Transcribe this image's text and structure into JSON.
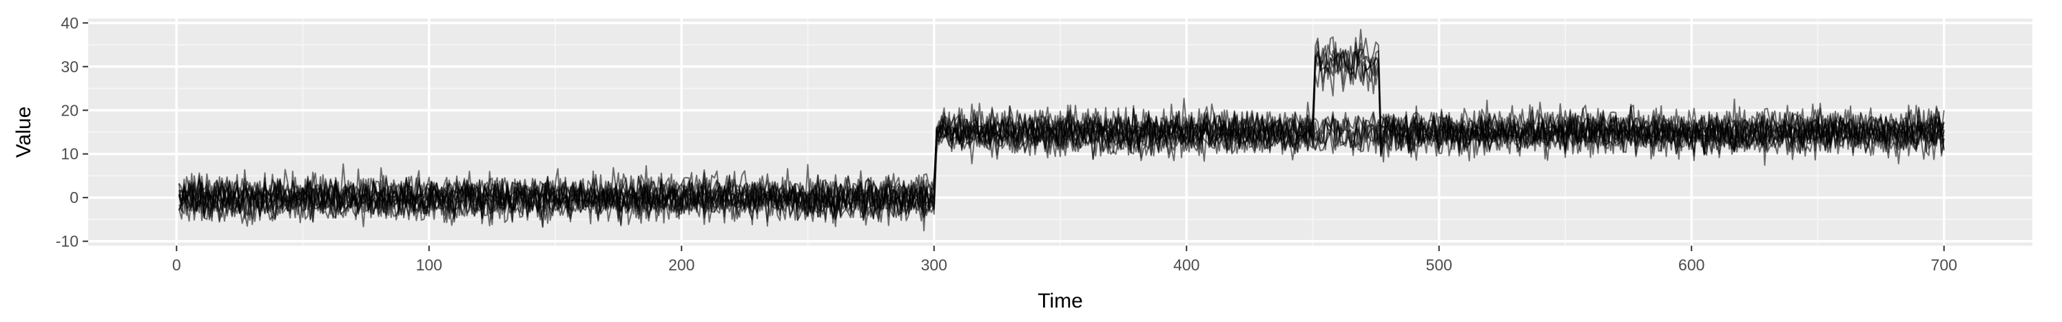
{
  "chart_data": {
    "type": "line",
    "title": "",
    "xlabel": "Time",
    "ylabel": "Value",
    "xlim": [
      -35,
      735
    ],
    "ylim": [
      -11,
      41
    ],
    "x_ticks": [
      0,
      100,
      200,
      300,
      400,
      500,
      600,
      700
    ],
    "y_ticks": [
      -10,
      0,
      10,
      20,
      30,
      40
    ],
    "grid": true,
    "legend": "none",
    "x_range": [
      1,
      700
    ],
    "series_summary": {
      "count": "many overlapping noisy series",
      "segments": [
        {
          "x_start": 1,
          "x_end": 300,
          "mean": 0,
          "typical_min": -6,
          "typical_max": 6
        },
        {
          "x_start": 301,
          "x_end": 700,
          "mean": 15,
          "typical_min": 9,
          "typical_max": 21
        }
      ],
      "anomaly": {
        "x_start": 451,
        "x_end": 476,
        "typical_min": 25,
        "typical_max": 38,
        "some_series_only": true
      }
    },
    "colors": {
      "line": "#000000",
      "panel": "#ebebeb",
      "grid_major": "#ffffff",
      "grid_minor": "#f5f5f5"
    }
  }
}
